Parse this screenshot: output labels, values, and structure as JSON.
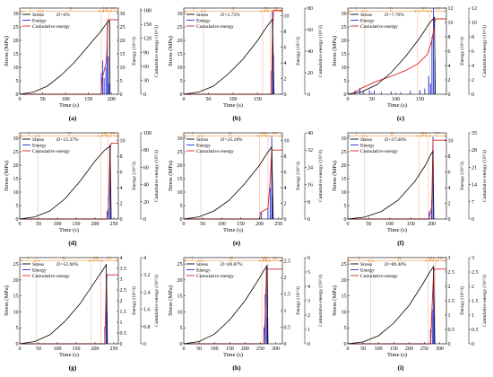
{
  "figure": {
    "stage_labels": [
      "I",
      "II",
      "III",
      "IV"
    ],
    "legend_labels": [
      "Stress",
      "Energy",
      "Cumulative energy"
    ],
    "colors": {
      "stress": "#000000",
      "energy": "#1f2fd6",
      "cumulative": "#e02020",
      "stage": "#f08a2a",
      "divider": "#f5b8a0"
    }
  },
  "chart_data": [
    {
      "panel": "(a)",
      "type": "line",
      "D_label": "D=0%",
      "xlabel": "Time (s)",
      "ylabel": "Stress (MPa)",
      "y2label": "Energy (10^3)",
      "y3label": "Cumulative energy (10^3)",
      "xlim": [
        0,
        215
      ],
      "xticks": [
        0,
        50,
        100,
        150,
        200
      ],
      "ylim": [
        0,
        32
      ],
      "yticks": [
        0,
        5,
        10,
        15,
        20,
        25,
        30
      ],
      "y2lim": [
        0,
        32
      ],
      "y2ticks": [
        0,
        5,
        10,
        15,
        20,
        25,
        30
      ],
      "y3lim": [
        0,
        185
      ],
      "y3ticks": [
        0,
        30,
        60,
        90,
        120,
        150,
        180
      ],
      "stages": [
        0,
        45,
        178,
        195,
        215
      ],
      "stress": [
        [
          0,
          0
        ],
        [
          30,
          0.8
        ],
        [
          60,
          3
        ],
        [
          90,
          7
        ],
        [
          120,
          12
        ],
        [
          150,
          18
        ],
        [
          175,
          23
        ],
        [
          190,
          26.5
        ],
        [
          196,
          27.3
        ],
        [
          197,
          0
        ]
      ],
      "energy_spikes": [
        [
          178,
          8
        ],
        [
          181,
          12.5
        ],
        [
          184,
          6
        ],
        [
          188,
          10
        ],
        [
          191,
          26
        ],
        [
          193,
          14
        ],
        [
          195,
          4
        ]
      ],
      "cumulative": [
        [
          0,
          0
        ],
        [
          178,
          0
        ],
        [
          179,
          30
        ],
        [
          184,
          50
        ],
        [
          188,
          65
        ],
        [
          190,
          90
        ],
        [
          192,
          160
        ],
        [
          215,
          160
        ]
      ]
    },
    {
      "panel": "(b)",
      "type": "line",
      "D_label": "D=2.75%",
      "xlabel": "Time (s)",
      "ylabel": "Stress (MPa)",
      "y2label": "Energy (10^3)",
      "y3label": "Cumulative energy (10^3)",
      "xlim": [
        0,
        200
      ],
      "xticks": [
        0,
        50,
        100,
        150
      ],
      "ylim": [
        0,
        32
      ],
      "yticks": [
        0,
        5,
        10,
        15,
        20,
        25,
        30
      ],
      "y2lim": [
        0,
        11
      ],
      "y2ticks": [
        0,
        2,
        4,
        6,
        8,
        10
      ],
      "y3lim": [
        0,
        80
      ],
      "y3ticks": [
        0,
        20,
        40,
        60,
        80
      ],
      "stages": [
        0,
        40,
        160,
        175,
        200
      ],
      "stress": [
        [
          0,
          0
        ],
        [
          30,
          0.8
        ],
        [
          60,
          3
        ],
        [
          90,
          7.5
        ],
        [
          120,
          13
        ],
        [
          150,
          20
        ],
        [
          170,
          25.5
        ],
        [
          180,
          27.8
        ],
        [
          183,
          0
        ]
      ],
      "energy_spikes": [
        [
          178,
          3
        ],
        [
          180,
          10.5
        ],
        [
          182,
          5
        ]
      ],
      "cumulative": [
        [
          0,
          0
        ],
        [
          178,
          0
        ],
        [
          180,
          55
        ],
        [
          182,
          78
        ],
        [
          200,
          78
        ]
      ]
    },
    {
      "panel": "(c)",
      "type": "line",
      "D_label": "D=7.70%",
      "xlabel": "Time (s)",
      "ylabel": "Stress (MPa)",
      "y2label": "Energy (10^3)",
      "y3label": "Cumulative energy (10^3)",
      "xlim": [
        0,
        205
      ],
      "xticks": [
        0,
        50,
        100,
        150
      ],
      "ylim": [
        0,
        32
      ],
      "yticks": [
        0,
        5,
        10,
        15,
        20,
        25,
        30
      ],
      "y2lim": [
        0,
        12
      ],
      "y2ticks": [
        0,
        2,
        4,
        6,
        8,
        10,
        12
      ],
      "y3lim": [
        0,
        12
      ],
      "y3ticks": [
        0,
        2,
        4,
        6,
        8,
        10,
        12
      ],
      "stages": [
        0,
        35,
        145,
        170,
        205
      ],
      "stress": [
        [
          0,
          0
        ],
        [
          30,
          1
        ],
        [
          60,
          3.5
        ],
        [
          90,
          8
        ],
        [
          120,
          14
        ],
        [
          150,
          21
        ],
        [
          170,
          26.5
        ],
        [
          180,
          28.5
        ],
        [
          182,
          0
        ]
      ],
      "energy_spikes": [
        [
          15,
          0.5
        ],
        [
          25,
          0.9
        ],
        [
          32,
          0.4
        ],
        [
          45,
          0.6
        ],
        [
          55,
          0.5
        ],
        [
          70,
          0.3
        ],
        [
          90,
          0.4
        ],
        [
          110,
          0.3
        ],
        [
          130,
          0.5
        ],
        [
          150,
          0.6
        ],
        [
          160,
          0.8
        ],
        [
          168,
          2.5
        ],
        [
          172,
          1.5
        ],
        [
          175,
          8
        ],
        [
          178,
          12
        ],
        [
          181,
          5
        ]
      ],
      "cumulative": [
        [
          0,
          0
        ],
        [
          10,
          0.1
        ],
        [
          30,
          0.9
        ],
        [
          60,
          1.8
        ],
        [
          90,
          2.5
        ],
        [
          120,
          3.3
        ],
        [
          145,
          4.2
        ],
        [
          165,
          5.5
        ],
        [
          175,
          7.5
        ],
        [
          182,
          10.5
        ],
        [
          205,
          10.5
        ]
      ]
    },
    {
      "panel": "(d)",
      "type": "line",
      "D_label": "D=15.37%",
      "xlabel": "Time (s)",
      "ylabel": "Stress (MPa)",
      "y2label": "Energy (10^3)",
      "y3label": "Cumulative energy (10^3)",
      "xlim": [
        0,
        262
      ],
      "xticks": [
        0,
        50,
        100,
        150,
        200,
        250
      ],
      "ylim": [
        0,
        32
      ],
      "yticks": [
        0,
        5,
        10,
        15,
        20,
        25,
        30
      ],
      "y2lim": [
        0,
        11
      ],
      "y2ticks": [
        0,
        2,
        4,
        6,
        8,
        10
      ],
      "y3lim": [
        0,
        100
      ],
      "y3ticks": [
        0,
        20,
        40,
        60,
        80,
        100
      ],
      "stages": [
        0,
        48,
        215,
        235,
        262
      ],
      "stress": [
        [
          0,
          0
        ],
        [
          40,
          0.8
        ],
        [
          80,
          3
        ],
        [
          120,
          7.5
        ],
        [
          160,
          14
        ],
        [
          200,
          21.5
        ],
        [
          225,
          25.5
        ],
        [
          240,
          27
        ],
        [
          243,
          0
        ]
      ],
      "energy_spikes": [
        [
          232,
          1
        ],
        [
          236,
          3
        ],
        [
          240,
          9.5
        ],
        [
          242,
          4
        ]
      ],
      "cumulative": [
        [
          0,
          0
        ],
        [
          232,
          0
        ],
        [
          236,
          15
        ],
        [
          240,
          80
        ],
        [
          243,
          88
        ],
        [
          262,
          88
        ]
      ]
    },
    {
      "panel": "(e)",
      "type": "line",
      "D_label": "D=25.18%",
      "xlabel": "Time (s)",
      "ylabel": "Stress (MPa)",
      "y2label": "Energy (10^3)",
      "y3label": "Cumulative energy (10^3)",
      "xlim": [
        0,
        260
      ],
      "xticks": [
        0,
        50,
        100,
        150,
        200,
        250
      ],
      "ylim": [
        0,
        32
      ],
      "yticks": [
        0,
        5,
        10,
        15,
        20,
        25,
        30
      ],
      "y2lim": [
        0,
        11
      ],
      "y2ticks": [
        0,
        2,
        4,
        6,
        8,
        10
      ],
      "y3lim": [
        0,
        40
      ],
      "y3ticks": [
        0,
        8,
        16,
        24,
        32,
        40
      ],
      "stages": [
        0,
        45,
        200,
        222,
        260
      ],
      "stress": [
        [
          0,
          0
        ],
        [
          40,
          0.8
        ],
        [
          80,
          3
        ],
        [
          120,
          7
        ],
        [
          160,
          13
        ],
        [
          200,
          20
        ],
        [
          220,
          24.5
        ],
        [
          232,
          26.8
        ],
        [
          236,
          0
        ]
      ],
      "energy_spikes": [
        [
          205,
          0.8
        ],
        [
          222,
          1.5
        ],
        [
          228,
          4
        ],
        [
          232,
          10.5
        ],
        [
          234,
          3
        ]
      ],
      "cumulative": [
        [
          0,
          0
        ],
        [
          200,
          0
        ],
        [
          202,
          3
        ],
        [
          222,
          5
        ],
        [
          228,
          18
        ],
        [
          232,
          32
        ],
        [
          260,
          32
        ]
      ]
    },
    {
      "panel": "(f)",
      "type": "line",
      "D_label": "D=37.60%",
      "xlabel": "Time (s)",
      "ylabel": "Stress (MPa)",
      "y2label": "Energy (10^3)",
      "y3label": "Cumulative energy (10^3)",
      "xlim": [
        0,
        235
      ],
      "xticks": [
        0,
        50,
        100,
        150,
        200
      ],
      "ylim": [
        0,
        32
      ],
      "yticks": [
        0,
        5,
        10,
        15,
        20,
        25,
        30
      ],
      "y2lim": [
        0,
        11
      ],
      "y2ticks": [
        0,
        2,
        4,
        6,
        8,
        10
      ],
      "y3lim": [
        0,
        35
      ],
      "y3ticks": [
        0,
        7,
        14,
        21,
        28,
        35
      ],
      "stages": [
        0,
        40,
        170,
        192,
        235
      ],
      "stress": [
        [
          0,
          0
        ],
        [
          40,
          0.7
        ],
        [
          80,
          2.8
        ],
        [
          120,
          7
        ],
        [
          160,
          14
        ],
        [
          185,
          20
        ],
        [
          198,
          24
        ],
        [
          203,
          25.2
        ],
        [
          205,
          0
        ]
      ],
      "energy_spikes": [
        [
          194,
          1
        ],
        [
          200,
          2.5
        ],
        [
          203,
          10.5
        ]
      ],
      "cumulative": [
        [
          0,
          0
        ],
        [
          194,
          0
        ],
        [
          200,
          5
        ],
        [
          203,
          32
        ],
        [
          235,
          32
        ]
      ]
    },
    {
      "panel": "(g)",
      "type": "line",
      "D_label": "D=52.96%",
      "xlabel": "Time (s)",
      "ylabel": "Stress (MPa)",
      "y2label": "Energy (10^3)",
      "y3label": "Cumulative energy (10^3)",
      "xlim": [
        0,
        262
      ],
      "xticks": [
        0,
        50,
        100,
        150,
        200,
        250
      ],
      "ylim": [
        0,
        27
      ],
      "yticks": [
        0,
        5,
        10,
        15,
        20,
        25
      ],
      "y2lim": [
        0,
        4.0
      ],
      "y2ticks": [
        0,
        0.5,
        1.0,
        1.5,
        2.0,
        2.5,
        3.0,
        3.5,
        4.0
      ],
      "y3lim": [
        0,
        4.0
      ],
      "y3ticks": [
        0,
        0.8,
        1.6,
        2.4,
        3.2,
        4.0
      ],
      "stages": [
        0,
        45,
        190,
        215,
        262
      ],
      "stress": [
        [
          0,
          0
        ],
        [
          40,
          0.7
        ],
        [
          80,
          2.8
        ],
        [
          120,
          7
        ],
        [
          160,
          12.5
        ],
        [
          200,
          19.5
        ],
        [
          220,
          23
        ],
        [
          230,
          24.8
        ],
        [
          233,
          0
        ]
      ],
      "energy_spikes": [
        [
          226,
          0.8
        ],
        [
          230,
          3.2
        ],
        [
          232,
          1.5
        ]
      ],
      "cumulative": [
        [
          0,
          0
        ],
        [
          226,
          0
        ],
        [
          230,
          2.8
        ],
        [
          232,
          3.2
        ],
        [
          262,
          3.2
        ]
      ]
    },
    {
      "panel": "(h)",
      "type": "line",
      "D_label": "D=69.87%",
      "xlabel": "Time (s)",
      "ylabel": "Stress (MPa)",
      "y2label": "Energy (10^3)",
      "y3label": "Cumulative energy (10^3)",
      "xlim": [
        0,
        322
      ],
      "xticks": [
        0,
        50,
        100,
        150,
        200,
        250,
        300
      ],
      "ylim": [
        0,
        27
      ],
      "yticks": [
        0,
        5,
        10,
        15,
        20,
        25
      ],
      "y2lim": [
        0,
        2.6
      ],
      "y2ticks": [
        0,
        0.5,
        1.0,
        1.5,
        2.0,
        2.5
      ],
      "y3lim": [
        0,
        6
      ],
      "y3ticks": [
        0,
        1,
        2,
        3,
        4,
        5,
        6
      ],
      "stages": [
        0,
        55,
        255,
        275,
        322
      ],
      "stress": [
        [
          0,
          0
        ],
        [
          50,
          0.7
        ],
        [
          100,
          3
        ],
        [
          150,
          7.5
        ],
        [
          200,
          13.5
        ],
        [
          240,
          19.5
        ],
        [
          262,
          23
        ],
        [
          272,
          24.5
        ],
        [
          275,
          0
        ]
      ],
      "energy_spikes": [
        [
          262,
          0.5
        ],
        [
          266,
          1.5
        ],
        [
          270,
          2.3
        ],
        [
          273,
          0.8
        ]
      ],
      "cumulative": [
        [
          0,
          0
        ],
        [
          262,
          0
        ],
        [
          266,
          2
        ],
        [
          270,
          5
        ],
        [
          273,
          5.2
        ],
        [
          322,
          5.2
        ]
      ]
    },
    {
      "panel": "(i)",
      "type": "line",
      "D_label": "D=89.40%",
      "xlabel": "Time (s)",
      "ylabel": "Stress (MPa)",
      "y2label": "Energy (10^3)",
      "y3label": "Cumulative energy (10^3)",
      "xlim": [
        0,
        322
      ],
      "xticks": [
        0,
        50,
        100,
        150,
        200,
        250,
        300
      ],
      "ylim": [
        0,
        27
      ],
      "yticks": [
        0,
        5,
        10,
        15,
        20,
        25
      ],
      "y2lim": [
        0,
        3.0
      ],
      "y2ticks": [
        0,
        0.5,
        1.0,
        1.5,
        2.0,
        2.5,
        3.0
      ],
      "y3lim": [
        0,
        3.0
      ],
      "y3ticks": [
        0,
        0.5,
        1.0,
        1.5,
        2.0,
        2.5,
        3.0
      ],
      "stages": [
        0,
        75,
        262,
        285,
        322
      ],
      "stress": [
        [
          0,
          0
        ],
        [
          50,
          0.6
        ],
        [
          100,
          2.5
        ],
        [
          150,
          6.5
        ],
        [
          200,
          12
        ],
        [
          240,
          18
        ],
        [
          268,
          22.5
        ],
        [
          280,
          24.2
        ],
        [
          284,
          0
        ]
      ],
      "energy_spikes": [
        [
          270,
          0.5
        ],
        [
          276,
          1.2
        ],
        [
          280,
          2.7
        ],
        [
          282,
          1.0
        ]
      ],
      "cumulative": [
        [
          0,
          0
        ],
        [
          270,
          0
        ],
        [
          276,
          1.5
        ],
        [
          280,
          2.5
        ],
        [
          283,
          2.6
        ],
        [
          322,
          2.6
        ]
      ]
    }
  ]
}
